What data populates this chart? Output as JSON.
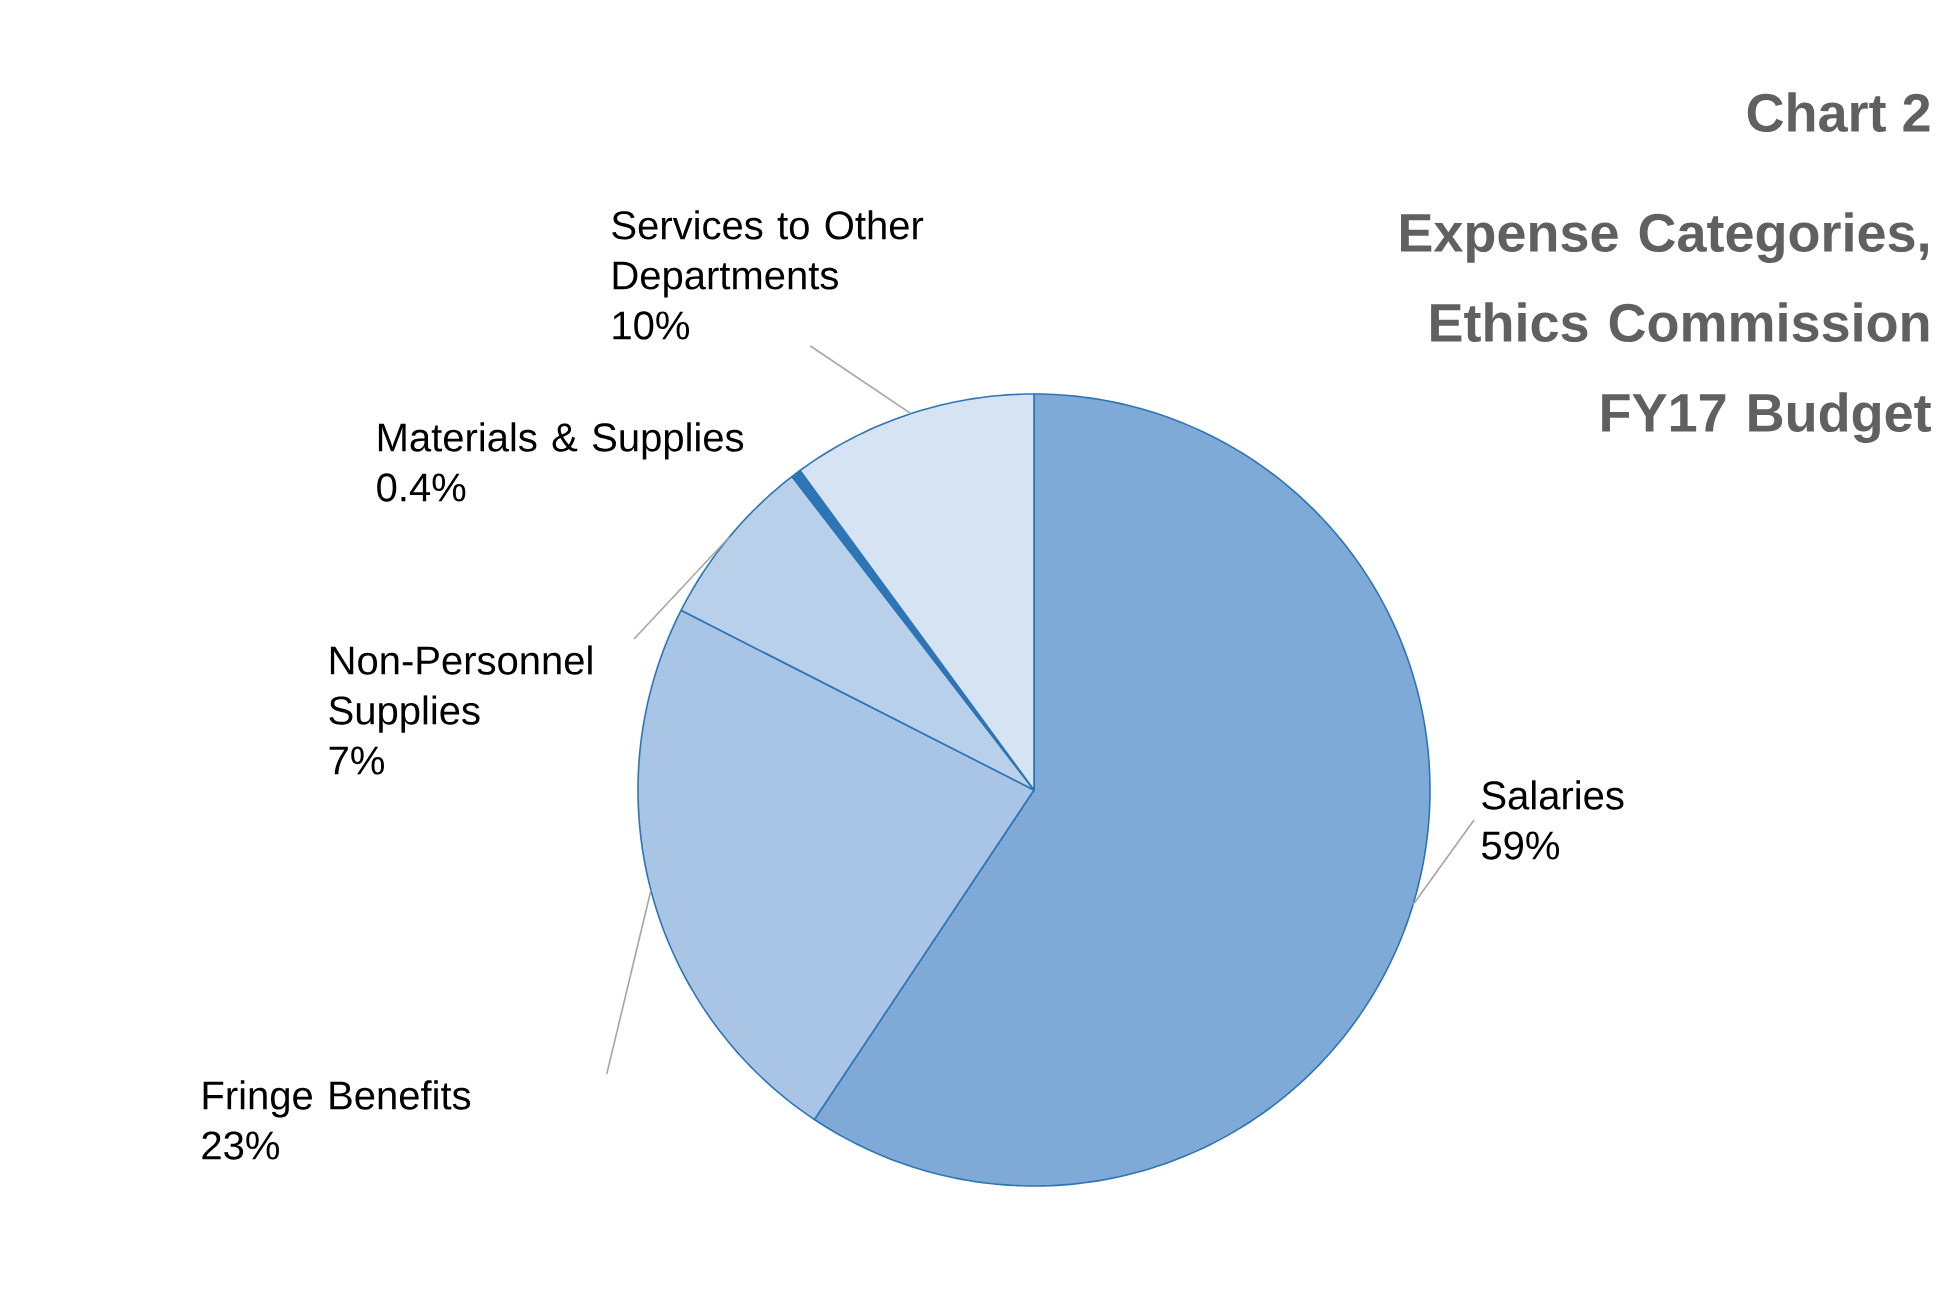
{
  "chart_data": {
    "type": "pie",
    "title": "Chart 2",
    "subtitle": "Expense Categories, Ethics Commission FY17 Budget",
    "categories": [
      "Salaries",
      "Fringe Benefits",
      "Non-Personnel Supplies",
      "Materials & Supplies",
      "Services to Other Departments"
    ],
    "values": [
      59,
      23,
      7,
      0.4,
      10
    ],
    "value_labels": [
      "59%",
      "23%",
      "7%",
      "0.4%",
      "10%"
    ],
    "colors": [
      "#7fa9d6",
      "#a9c5e6",
      "#b8d0ea",
      "#2e75b6",
      "#d5e3f3"
    ]
  }
}
